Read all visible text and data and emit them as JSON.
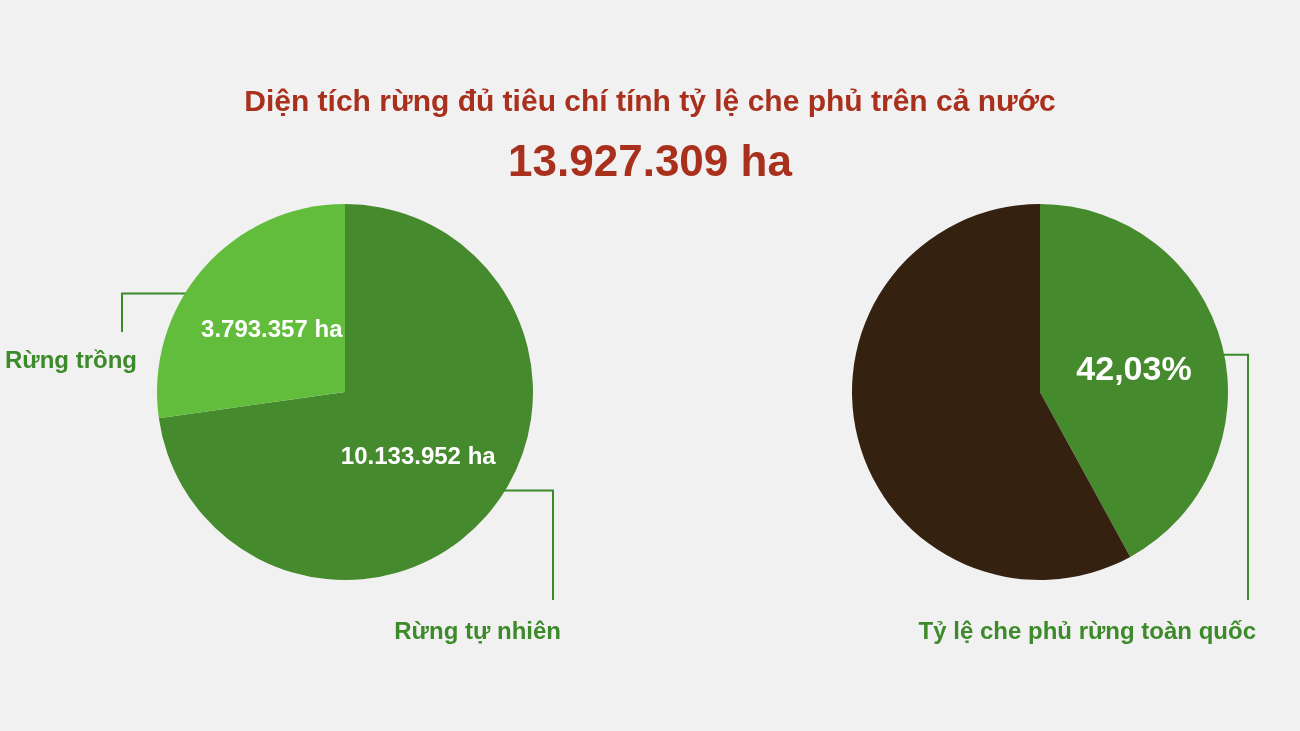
{
  "chart_data": [
    {
      "type": "pie",
      "title": "Diện tích rừng đủ tiêu chí tính tỷ lệ che phủ trên cả nước",
      "subtitle": "13.927.309 ha",
      "categories": [
        "Rừng tự nhiên",
        "Rừng trồng"
      ],
      "values": [
        10133952,
        3793357
      ],
      "colors": [
        "#468a2e",
        "#62bd3d"
      ],
      "value_labels": [
        "10.133.952 ha",
        "3.793.357 ha"
      ]
    },
    {
      "type": "pie",
      "categories": [
        "Tỷ lệ che phủ rừng toàn quốc",
        null
      ],
      "values": [
        42.03,
        57.97
      ],
      "colors": [
        "#468a2e",
        "#35210f"
      ],
      "value_labels": [
        "42,03%",
        null
      ]
    }
  ]
}
